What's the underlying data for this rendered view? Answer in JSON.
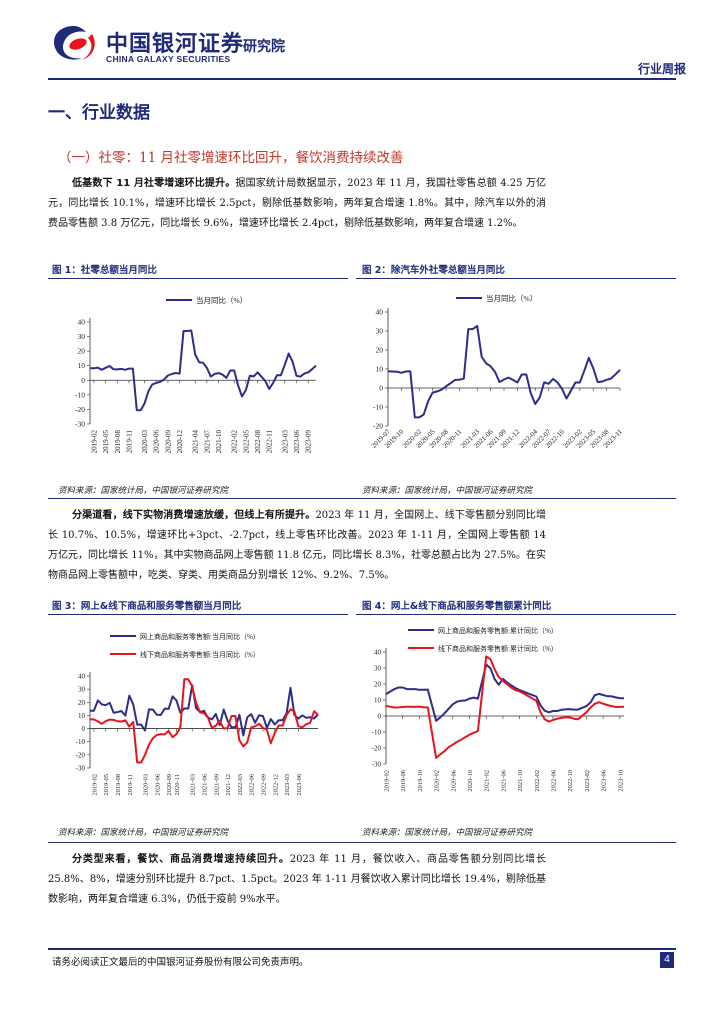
{
  "header": {
    "logo_cn": "中国银河证券",
    "logo_en": "CHINA GALAXY SECURITIES",
    "institute": "研究院",
    "report_type": "行业周报"
  },
  "section": {
    "title": "一、行业数据",
    "subtitle": "（一）社零：11 月社零增速环比回升，餐饮消费持续改善"
  },
  "paragraphs": [
    {
      "lead": "低基数下 11 月社零增速环比提升。",
      "text": "据国家统计局数据显示，2023 年 11 月，我国社零售总额 4.25 万亿元，同比增长 10.1%，增速环比增长 2.5pct，剔除低基数影响，两年复合增速 1.8%。其中，除汽车以外的消费品零售额 3.8 万亿元，同比增长 9.6%，增速环比增长 2.4pct，剔除低基数影响，两年复合增速 1.2%。"
    },
    {
      "lead": "分渠道看，线下实物消费增速放缓，但线上有所提升。",
      "text": "2023 年 11 月，全国网上、线下零售额分别同比增长 10.7%、10.5%，增速环比+3pct、-2.7pct，线上零售环比改善。2023 年 1-11 月，全国网上零售额 14 万亿元，同比增长 11%，其中实物商品网上零售额 11.8 亿元，同比增长 8.3%，社零总额占比为 27.5%。在实物商品网上零售额中，吃类、穿类、用类商品分别增长 12%、9.2%、7.5%。"
    },
    {
      "lead": "分类型来看，餐饮、商品消费增速持续回升。",
      "text": "2023 年 11 月，餐饮收入、商品零售额分别同比增长 25.8%、8%，增速分别环比提升 8.7pct、1.5pct。2023 年 1-11 月餐饮收入累计同比增长 19.4%，剔除低基数影响，两年复合增速 6.3%，仍低于疫前 9%水平。"
    }
  ],
  "figures": [
    {
      "title": "图 1：社零总额当月同比",
      "source": "资料来源：国家统计局，中国银河证券研究院"
    },
    {
      "title": "图 2：除汽车外社零总额当月同比",
      "source": "资料来源：国家统计局，中国银河证券研究院"
    },
    {
      "title": "图 3：网上&线下商品和服务零售额当月同比",
      "source": "资料来源：国家统计局，中国银河证券研究院"
    },
    {
      "title": "图 4：网上&线下商品和服务零售额累计同比",
      "source": "资料来源：国家统计局，中国银河证券研究院"
    }
  ],
  "footer": {
    "disclaimer": "请务必阅读正文最后的中国银河证券股份有限公司免责声明。",
    "page": "4"
  },
  "colors": {
    "navy": "#1f2a78",
    "red": "#e8141c",
    "series_blue": "#2d2d8c"
  },
  "chart_data": [
    {
      "type": "line",
      "title": "",
      "ylim": [
        -30,
        40
      ],
      "yticks": [
        -30,
        -20,
        -10,
        0,
        10,
        20,
        30,
        40
      ],
      "xtick_labels": [
        "2019-02",
        "2019-05",
        "2019-08",
        "2019-11",
        "2020-03",
        "2020-06",
        "2020-09",
        "2020-12",
        "2021-04",
        "2021-07",
        "2021-10",
        "2022-02",
        "2022-05",
        "2022-08",
        "2022-11",
        "2023-03",
        "2023-06",
        "2023-09"
      ],
      "x": [
        "2019-01",
        "2019-02",
        "2019-03",
        "2019-04",
        "2019-05",
        "2019-06",
        "2019-07",
        "2019-08",
        "2019-09",
        "2019-10",
        "2019-11",
        "2019-12",
        "2020-01",
        "2020-02",
        "2020-03",
        "2020-04",
        "2020-05",
        "2020-06",
        "2020-07",
        "2020-08",
        "2020-09",
        "2020-10",
        "2020-11",
        "2020-12",
        "2021-01",
        "2021-02",
        "2021-03",
        "2021-04",
        "2021-05",
        "2021-06",
        "2021-07",
        "2021-08",
        "2021-09",
        "2021-10",
        "2021-11",
        "2021-12",
        "2022-01",
        "2022-02",
        "2022-03",
        "2022-04",
        "2022-05",
        "2022-06",
        "2022-07",
        "2022-08",
        "2022-09",
        "2022-10",
        "2022-11",
        "2022-12",
        "2023-01",
        "2023-02",
        "2023-03",
        "2023-04",
        "2023-05",
        "2023-06",
        "2023-07",
        "2023-08",
        "2023-09",
        "2023-10",
        "2023-11"
      ],
      "series": [
        {
          "name": "当月同比（%）",
          "color": "#2d2d8c",
          "values": [
            8.2,
            8.2,
            8.7,
            7.2,
            8.6,
            9.8,
            7.6,
            7.5,
            7.8,
            7.2,
            8.0,
            8.0,
            -20.5,
            -20.5,
            -15.8,
            -7.5,
            -2.8,
            -1.8,
            -1.1,
            0.5,
            3.3,
            4.3,
            5.0,
            4.6,
            33.8,
            33.8,
            34.2,
            17.7,
            12.4,
            12.1,
            8.5,
            2.5,
            4.4,
            4.9,
            3.9,
            1.7,
            6.7,
            6.7,
            -3.5,
            -11.1,
            -6.7,
            3.1,
            2.7,
            5.4,
            2.5,
            -0.5,
            -5.9,
            -1.8,
            3.5,
            3.5,
            10.6,
            18.4,
            12.7,
            3.1,
            2.5,
            4.6,
            5.5,
            7.6,
            10.1
          ]
        }
      ]
    },
    {
      "type": "line",
      "title": "",
      "ylim": [
        -20,
        40
      ],
      "yticks": [
        -20,
        -10,
        0,
        10,
        20,
        30,
        40
      ],
      "xtick_labels": [
        "2019-07",
        "2019-10",
        "2020-02",
        "2020-05",
        "2020-08",
        "2020-11",
        "2021-03",
        "2021-06",
        "2021-09",
        "2021-12",
        "2022-04",
        "2022-07",
        "2022-10",
        "2023-02",
        "2023-05",
        "2023-08",
        "2023-11"
      ],
      "x": [
        "2019-07",
        "2019-08",
        "2019-09",
        "2019-10",
        "2019-11",
        "2019-12",
        "2020-01",
        "2020-02",
        "2020-03",
        "2020-04",
        "2020-05",
        "2020-06",
        "2020-07",
        "2020-08",
        "2020-09",
        "2020-10",
        "2020-11",
        "2020-12",
        "2021-01",
        "2021-02",
        "2021-03",
        "2021-04",
        "2021-05",
        "2021-06",
        "2021-07",
        "2021-08",
        "2021-09",
        "2021-10",
        "2021-11",
        "2021-12",
        "2022-01",
        "2022-02",
        "2022-03",
        "2022-04",
        "2022-05",
        "2022-06",
        "2022-07",
        "2022-08",
        "2022-09",
        "2022-10",
        "2022-11",
        "2022-12",
        "2023-01",
        "2023-02",
        "2023-03",
        "2023-04",
        "2023-05",
        "2023-06",
        "2023-07",
        "2023-08",
        "2023-09",
        "2023-10",
        "2023-11"
      ],
      "series": [
        {
          "name": "当月同比（%）",
          "color": "#2d2d8c",
          "values": [
            8.8,
            8.7,
            8.6,
            8.0,
            8.7,
            8.8,
            -15.5,
            -15.5,
            -14.0,
            -6.9,
            -2.4,
            -1.8,
            -0.9,
            0.9,
            2.5,
            4.2,
            4.4,
            4.9,
            31.0,
            31.0,
            32.7,
            16.4,
            12.9,
            11.5,
            8.4,
            3.1,
            4.5,
            5.5,
            4.3,
            2.9,
            7.1,
            7.1,
            -2.8,
            -8.4,
            -5.0,
            3.0,
            2.2,
            4.8,
            2.9,
            -0.4,
            -5.5,
            -1.4,
            2.9,
            2.9,
            9.1,
            15.9,
            10.5,
            3.1,
            3.4,
            4.3,
            5.0,
            7.2,
            9.6
          ]
        }
      ]
    },
    {
      "type": "line",
      "title": "",
      "ylim": [
        -30,
        40
      ],
      "yticks": [
        -30,
        -20,
        -10,
        0,
        10,
        20,
        30,
        40
      ],
      "xtick_labels": [
        "2019-02",
        "2019-05",
        "2019-08",
        "2019-11",
        "2020-03",
        "2020-06",
        "2020-09",
        "2020-11",
        "2021-03",
        "2021-06",
        "2021-09",
        "2021-12",
        "2022-03",
        "2022-06",
        "2022-09",
        "2022-12",
        "2023-03",
        "2023-06"
      ],
      "x": [
        "2019-01",
        "2019-02",
        "2019-03",
        "2019-04",
        "2019-05",
        "2019-06",
        "2019-07",
        "2019-08",
        "2019-09",
        "2019-10",
        "2019-11",
        "2019-12",
        "2020-01",
        "2020-02",
        "2020-03",
        "2020-04",
        "2020-05",
        "2020-06",
        "2020-07",
        "2020-08",
        "2020-09",
        "2020-10",
        "2020-11",
        "2020-12",
        "2021-01",
        "2021-02",
        "2021-03",
        "2021-04",
        "2021-05",
        "2021-06",
        "2021-07",
        "2021-08",
        "2021-09",
        "2021-10",
        "2021-11",
        "2021-12",
        "2022-01",
        "2022-02",
        "2022-03",
        "2022-04",
        "2022-05",
        "2022-06",
        "2022-07",
        "2022-08",
        "2022-09",
        "2022-10",
        "2022-11",
        "2022-12",
        "2023-01",
        "2023-02",
        "2023-03",
        "2023-04",
        "2023-05",
        "2023-06",
        "2023-07",
        "2023-08",
        "2023-09",
        "2023-10",
        "2023-11"
      ],
      "series": [
        {
          "name": "网上商品和服务零售额:当月同比（%）",
          "color": "#2d2d8c",
          "values": [
            13.6,
            13.6,
            21.4,
            18.4,
            17.8,
            19.6,
            12.1,
            12.5,
            13.4,
            9.9,
            25.0,
            18.5,
            3.0,
            3.0,
            -1.5,
            14.6,
            14.4,
            10.5,
            10.4,
            15.2,
            15.0,
            24.5,
            21.3,
            12.0,
            15.3,
            15.3,
            33.0,
            15.5,
            12.6,
            13.5,
            8.4,
            7.0,
            11.2,
            2.6,
            14.5,
            6.0,
            1.0,
            1.0,
            10.5,
            -5.2,
            8.5,
            11.0,
            4.4,
            10.1,
            9.6,
            0.4,
            7.2,
            3.2,
            6.3,
            6.3,
            11.7,
            31.0,
            10.4,
            7.6,
            10.0,
            8.2,
            8.6,
            7.7,
            10.7
          ]
        },
        {
          "name": "线下商品和服务零售额:当月同比（%）",
          "color": "#e8141c",
          "values": [
            7.0,
            7.0,
            5.4,
            3.6,
            5.6,
            6.8,
            6.6,
            5.6,
            5.4,
            6.2,
            1.4,
            5.1,
            -25.8,
            -25.8,
            -20.1,
            -12.1,
            -7.3,
            -4.9,
            -4.2,
            -4.5,
            -1.8,
            -6.6,
            -4.1,
            1.2,
            37.5,
            37.5,
            32.2,
            19.4,
            12.3,
            11.8,
            8.5,
            0.7,
            2.1,
            5.8,
            0.0,
            0.4,
            9.6,
            9.6,
            -8.9,
            -13.5,
            -10.5,
            0.8,
            1.7,
            3.6,
            0.4,
            -0.8,
            -11.2,
            -3.2,
            2.3,
            2.3,
            10.4,
            14.7,
            13.1,
            1.8,
            0.9,
            3.3,
            4.3,
            13.2,
            10.5
          ]
        }
      ]
    },
    {
      "type": "line",
      "title": "",
      "ylim": [
        -30,
        40
      ],
      "yticks": [
        -30,
        -20,
        -10,
        0,
        10,
        20,
        30,
        40
      ],
      "xtick_labels": [
        "2019-02",
        "2019-06",
        "2019-10",
        "2020-02",
        "2020-06",
        "2020-10",
        "2021-02",
        "2021-06",
        "2021-10",
        "2022-02",
        "2022-06",
        "2022-10",
        "2023-02",
        "2023-06",
        "2023-10"
      ],
      "x": [
        "2019-02",
        "2019-03",
        "2019-04",
        "2019-05",
        "2019-06",
        "2019-07",
        "2019-08",
        "2019-09",
        "2019-10",
        "2019-11",
        "2019-12",
        "2020-02",
        "2020-03",
        "2020-04",
        "2020-05",
        "2020-06",
        "2020-07",
        "2020-08",
        "2020-09",
        "2020-10",
        "2020-11",
        "2020-12",
        "2021-02",
        "2021-03",
        "2021-04",
        "2021-05",
        "2021-06",
        "2021-07",
        "2021-08",
        "2021-09",
        "2021-10",
        "2021-11",
        "2021-12",
        "2022-02",
        "2022-03",
        "2022-04",
        "2022-05",
        "2022-06",
        "2022-07",
        "2022-08",
        "2022-09",
        "2022-10",
        "2022-11",
        "2022-12",
        "2023-02",
        "2023-03",
        "2023-04",
        "2023-05",
        "2023-06",
        "2023-07",
        "2023-08",
        "2023-09",
        "2023-10",
        "2023-11"
      ],
      "series": [
        {
          "name": "网上商品和服务零售额:累计同比（%）",
          "color": "#2d2d8c",
          "values": [
            13.6,
            15.3,
            16.8,
            17.8,
            17.8,
            16.8,
            16.8,
            16.8,
            16.4,
            16.4,
            16.5,
            -3.0,
            -0.8,
            1.7,
            4.5,
            7.3,
            9.0,
            9.5,
            9.7,
            10.9,
            11.5,
            10.9,
            32.2,
            29.9,
            23.1,
            19.5,
            23.2,
            21.0,
            19.1,
            17.5,
            16.2,
            15.2,
            14.1,
            12.2,
            6.6,
            3.3,
            2.3,
            3.1,
            3.1,
            3.9,
            4.1,
            4.3,
            4.0,
            4.0,
            6.2,
            8.5,
            13.0,
            13.8,
            13.1,
            12.4,
            12.3,
            11.6,
            11.2,
            11.0
          ]
        },
        {
          "name": "线下商品和服务零售额:累计同比（%）",
          "color": "#e8141c",
          "values": [
            6.3,
            5.8,
            5.3,
            5.4,
            5.6,
            5.8,
            5.8,
            5.7,
            5.9,
            5.5,
            5.3,
            -26.1,
            -24.0,
            -22.0,
            -19.5,
            -17.9,
            -16.2,
            -14.8,
            -13.2,
            -11.7,
            -10.5,
            -9.4,
            37.2,
            35.5,
            29.2,
            24.4,
            22.0,
            19.9,
            17.6,
            16.2,
            15.4,
            14.0,
            12.5,
            9.6,
            2.4,
            -2.0,
            -3.5,
            -2.5,
            -1.7,
            -1.2,
            -0.9,
            -0.9,
            -1.7,
            -2.0,
            2.3,
            5.3,
            7.6,
            8.6,
            7.7,
            6.9,
            6.2,
            5.6,
            5.7,
            5.8
          ]
        }
      ]
    }
  ]
}
